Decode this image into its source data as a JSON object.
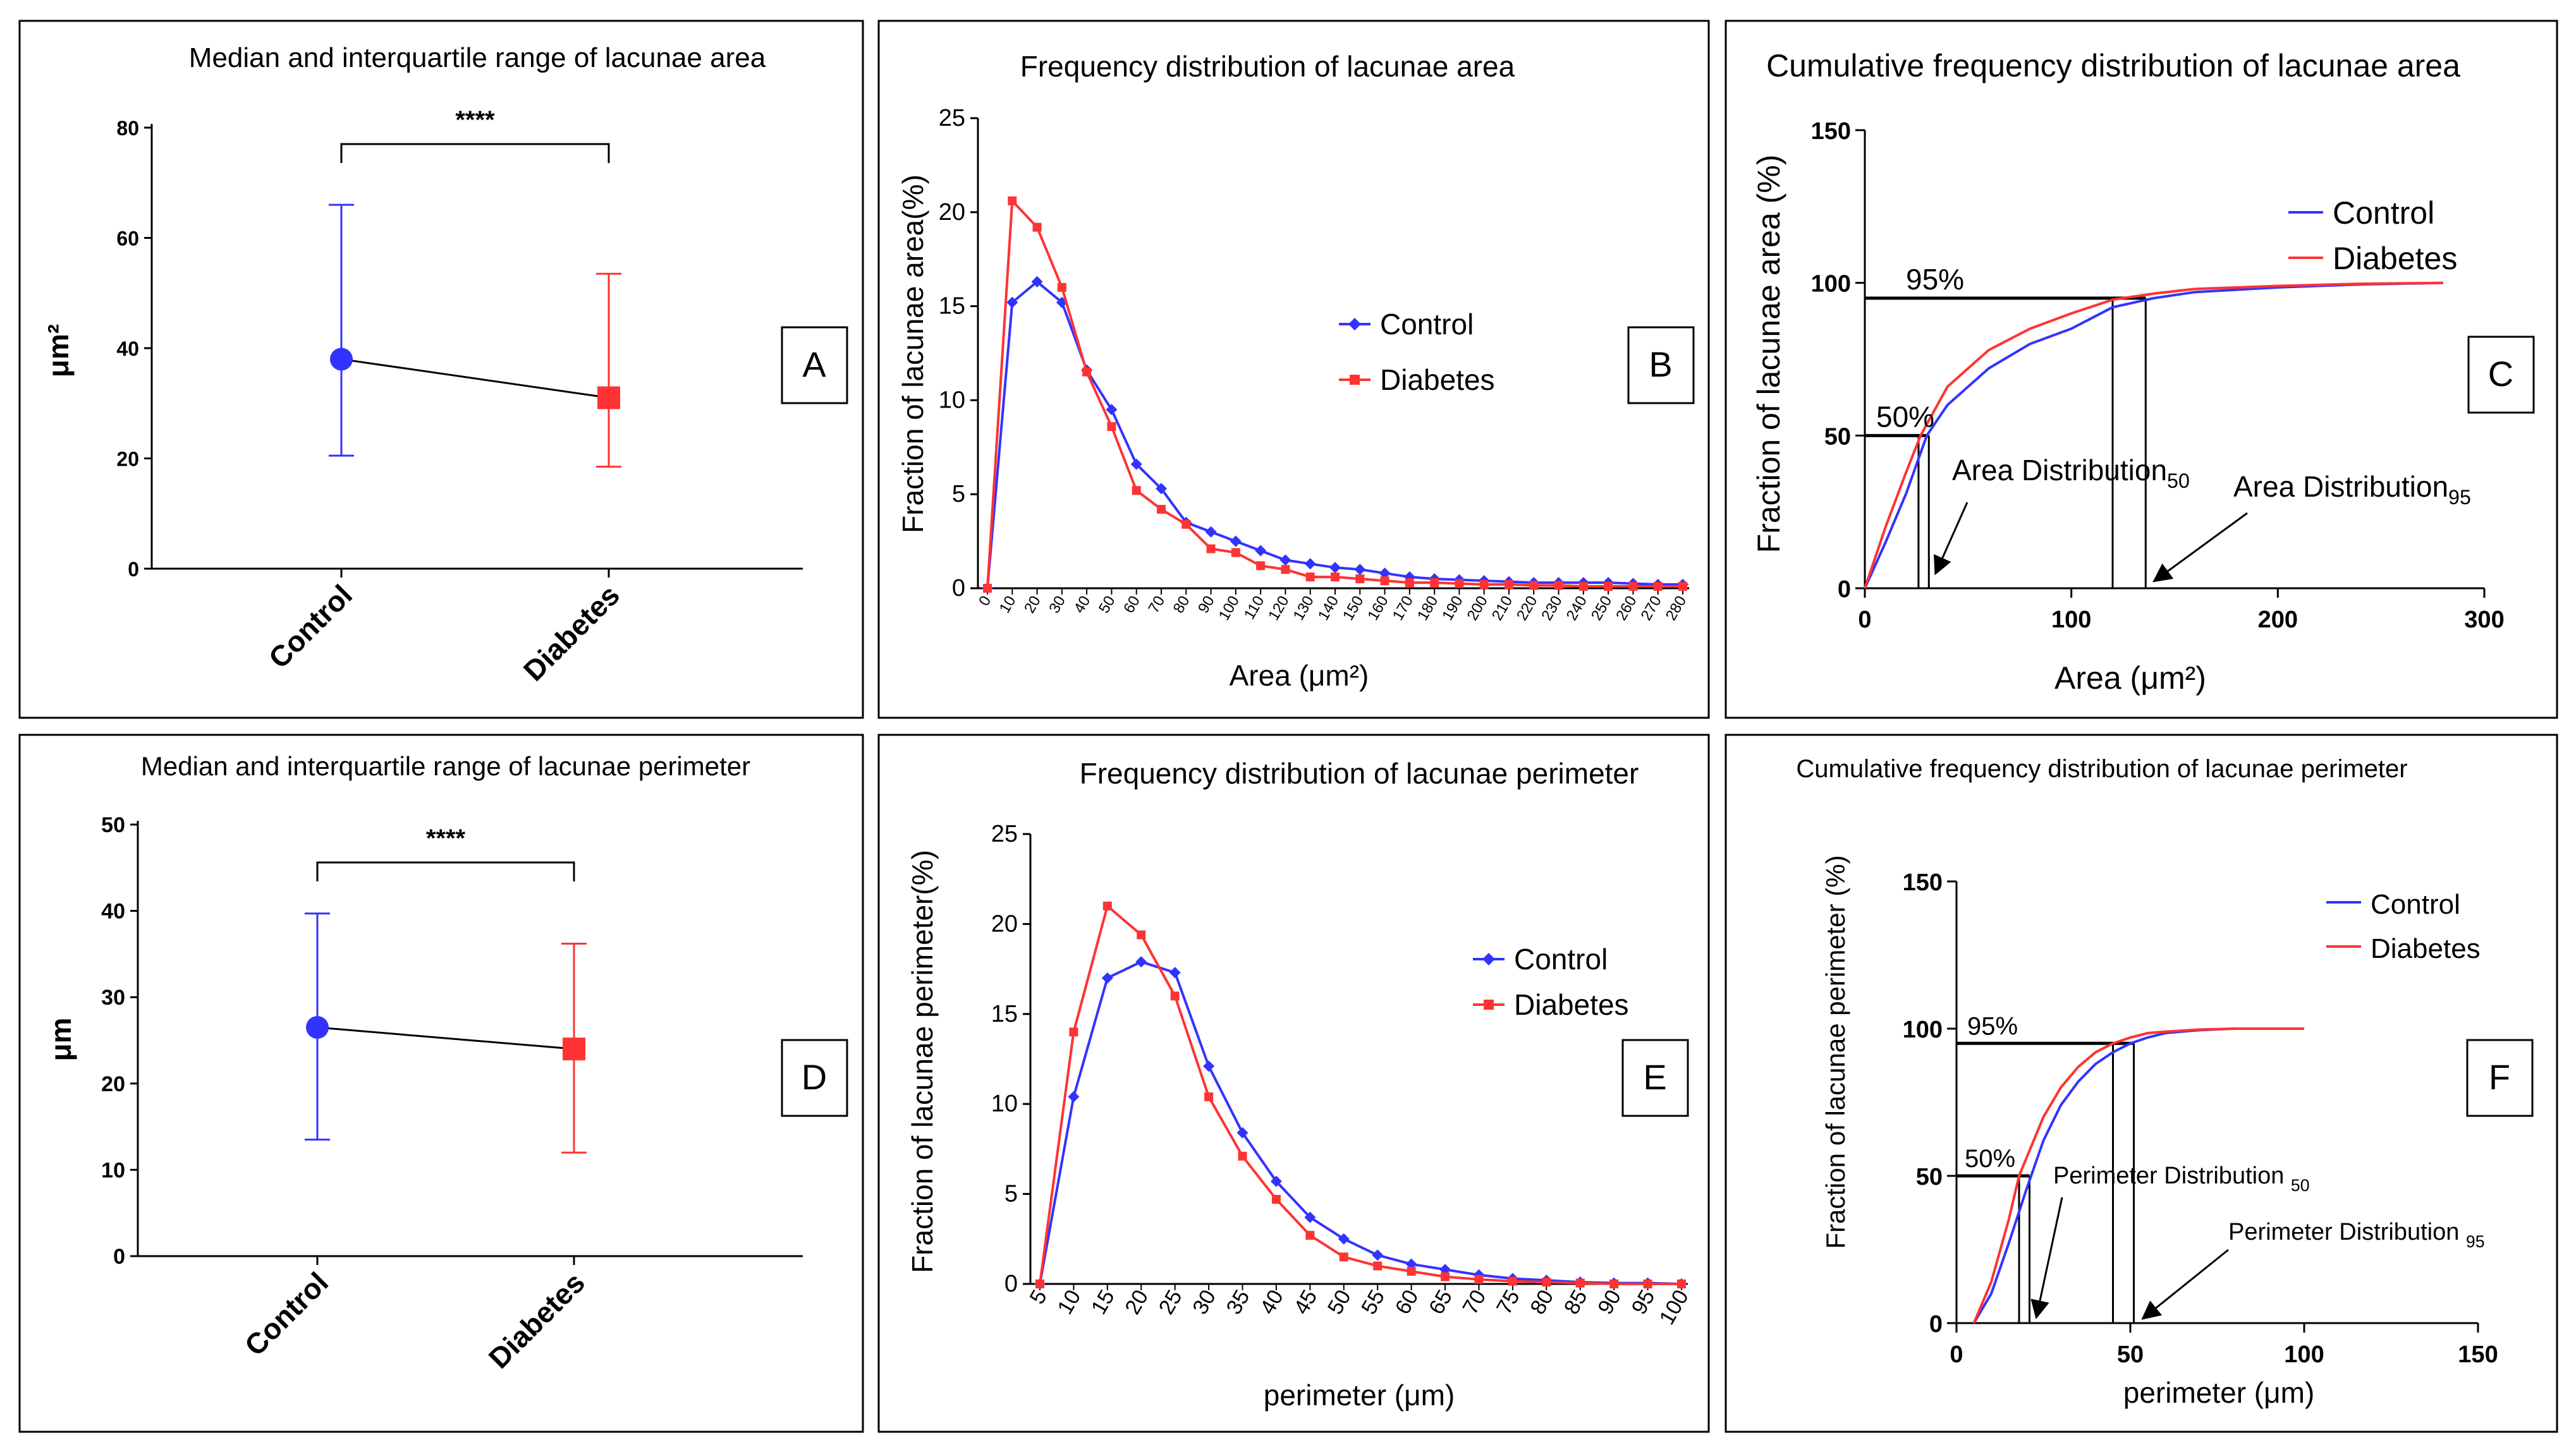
{
  "colors": {
    "control": "#3333ff",
    "diabetes": "#ff3333",
    "axis": "#000000",
    "connector": "#000000"
  },
  "chart_data": [
    {
      "id": "A",
      "type": "median-iqr",
      "title": "Median and interquartile range of  lacunae area",
      "panel_label": "A",
      "ylabel": "μm²",
      "ylim": [
        0,
        80
      ],
      "yticks": [
        0,
        20,
        40,
        60,
        80
      ],
      "categories": [
        "Control",
        "Diabetes"
      ],
      "series": [
        {
          "name": "Control",
          "median": 38,
          "q1": 20.5,
          "q3": 66
        },
        {
          "name": "Diabetes",
          "median": 31,
          "q1": 18.5,
          "q3": 53.5
        }
      ],
      "significance": "****"
    },
    {
      "id": "B",
      "type": "line",
      "title": "Frequency distribution of lacunae area",
      "panel_label": "B",
      "xlabel": "Area (μm²)",
      "ylabel": "Fraction of lacunae area(%)",
      "ylim": [
        0,
        25
      ],
      "yticks": [
        0,
        5,
        10,
        15,
        20,
        25
      ],
      "x": [
        0,
        10,
        20,
        30,
        40,
        50,
        60,
        70,
        80,
        90,
        100,
        110,
        120,
        130,
        140,
        150,
        160,
        170,
        180,
        190,
        200,
        210,
        220,
        230,
        240,
        250,
        260,
        270,
        280
      ],
      "series": [
        {
          "name": "Control",
          "values": [
            0,
            15.2,
            16.3,
            15.2,
            11.6,
            9.5,
            6.6,
            5.3,
            3.5,
            3.0,
            2.5,
            2.0,
            1.5,
            1.3,
            1.1,
            1.0,
            0.8,
            0.6,
            0.5,
            0.45,
            0.4,
            0.35,
            0.3,
            0.3,
            0.3,
            0.3,
            0.25,
            0.2,
            0.2
          ]
        },
        {
          "name": "Diabetes",
          "values": [
            0,
            20.6,
            19.2,
            16.0,
            11.5,
            8.6,
            5.2,
            4.2,
            3.4,
            2.1,
            1.9,
            1.2,
            1.0,
            0.6,
            0.6,
            0.5,
            0.4,
            0.3,
            0.3,
            0.25,
            0.2,
            0.2,
            0.15,
            0.15,
            0.1,
            0.1,
            0.1,
            0.1,
            0.1
          ]
        }
      ],
      "legend": [
        "Control",
        "Diabetes"
      ]
    },
    {
      "id": "C",
      "type": "cumulative",
      "title": "Cumulative frequency distribution of lacunae area",
      "panel_label": "C",
      "xlabel": "Area (μm²)",
      "ylabel": "Fraction of lacunae area (%)",
      "xlim": [
        0,
        300
      ],
      "xticks": [
        0,
        100,
        200,
        300
      ],
      "ylim": [
        0,
        150
      ],
      "yticks": [
        0,
        50,
        100,
        150
      ],
      "series": [
        {
          "name": "Control",
          "points": [
            [
              0,
              0
            ],
            [
              10,
              15
            ],
            [
              20,
              31
            ],
            [
              30,
              50
            ],
            [
              40,
              60
            ],
            [
              60,
              72
            ],
            [
              80,
              80
            ],
            [
              100,
              85
            ],
            [
              120,
              92
            ],
            [
              140,
              95
            ],
            [
              160,
              97
            ],
            [
              200,
              98.5
            ],
            [
              240,
              99.5
            ],
            [
              280,
              100
            ]
          ]
        },
        {
          "name": "Diabetes",
          "points": [
            [
              0,
              0
            ],
            [
              10,
              20
            ],
            [
              20,
              38
            ],
            [
              27,
              50
            ],
            [
              40,
              66
            ],
            [
              60,
              78
            ],
            [
              80,
              85
            ],
            [
              100,
              90
            ],
            [
              120,
              94.5
            ],
            [
              140,
              96.5
            ],
            [
              160,
              98
            ],
            [
              200,
              99
            ],
            [
              240,
              99.7
            ],
            [
              280,
              100
            ]
          ]
        }
      ],
      "legend": [
        "Control",
        "Diabetes"
      ],
      "refs": {
        "p50": 50,
        "p95": 95,
        "x50": [
          26,
          31
        ],
        "x95": [
          120,
          136
        ]
      },
      "labels": {
        "pct95": "95%",
        "pct50": "50%",
        "dist50": "Area Distribution",
        "dist50_sub": "50",
        "dist95": "Area Distribution",
        "dist95_sub": "95"
      }
    },
    {
      "id": "D",
      "type": "median-iqr",
      "title": "Median and interquartile range of  lacunae perimeter",
      "panel_label": "D",
      "ylabel": "μm",
      "ylim": [
        0,
        50
      ],
      "yticks": [
        0,
        10,
        20,
        30,
        40,
        50
      ],
      "categories": [
        "Control",
        "Diabetes"
      ],
      "series": [
        {
          "name": "Control",
          "median": 26.5,
          "q1": 13.5,
          "q3": 39.7
        },
        {
          "name": "Diabetes",
          "median": 24,
          "q1": 12,
          "q3": 36.2
        }
      ],
      "significance": "****"
    },
    {
      "id": "E",
      "type": "line",
      "title": "Frequency distribution of lacunae perimeter",
      "panel_label": "E",
      "xlabel": "perimeter (μm)",
      "ylabel": "Fraction of lacunae perimeter(%)",
      "ylim": [
        0,
        25
      ],
      "yticks": [
        0,
        5,
        10,
        15,
        20,
        25
      ],
      "x": [
        5,
        10,
        15,
        20,
        25,
        30,
        35,
        40,
        45,
        50,
        55,
        60,
        65,
        70,
        75,
        80,
        85,
        90,
        95,
        100
      ],
      "series": [
        {
          "name": "Control",
          "values": [
            0,
            10.4,
            17.0,
            17.9,
            17.3,
            12.1,
            8.4,
            5.7,
            3.7,
            2.5,
            1.6,
            1.1,
            0.8,
            0.5,
            0.3,
            0.2,
            0.1,
            0.05,
            0.05,
            0
          ]
        },
        {
          "name": "Diabetes",
          "values": [
            0,
            14.0,
            21.0,
            19.4,
            16.0,
            10.4,
            7.1,
            4.7,
            2.7,
            1.5,
            1.0,
            0.7,
            0.4,
            0.25,
            0.15,
            0.1,
            0.05,
            0,
            0,
            0
          ]
        }
      ],
      "legend": [
        "Control",
        "Diabetes"
      ]
    },
    {
      "id": "F",
      "type": "cumulative",
      "title": "Cumulative frequency distribution of lacunae perimeter",
      "panel_label": "F",
      "xlabel": "perimeter (μm)",
      "ylabel": "Fraction of lacunae perimeter (%)",
      "xlim": [
        0,
        150
      ],
      "xticks": [
        0,
        50,
        100,
        150
      ],
      "ylim": [
        0,
        150
      ],
      "yticks": [
        0,
        50,
        100,
        150
      ],
      "series": [
        {
          "name": "Control",
          "points": [
            [
              5,
              0
            ],
            [
              10,
              10
            ],
            [
              15,
              27
            ],
            [
              20,
              45
            ],
            [
              25,
              62
            ],
            [
              30,
              74
            ],
            [
              35,
              82
            ],
            [
              40,
              88
            ],
            [
              45,
              92
            ],
            [
              50,
              95
            ],
            [
              55,
              97
            ],
            [
              60,
              98.5
            ],
            [
              70,
              99.5
            ],
            [
              80,
              100
            ],
            [
              100,
              100
            ]
          ]
        },
        {
          "name": "Diabetes",
          "points": [
            [
              5,
              0
            ],
            [
              10,
              14
            ],
            [
              15,
              35
            ],
            [
              18,
              50
            ],
            [
              25,
              70
            ],
            [
              30,
              80
            ],
            [
              35,
              87
            ],
            [
              40,
              92
            ],
            [
              45,
              95
            ],
            [
              50,
              97
            ],
            [
              55,
              98.5
            ],
            [
              60,
              99
            ],
            [
              70,
              99.7
            ],
            [
              80,
              100
            ],
            [
              100,
              100
            ]
          ]
        }
      ],
      "legend": [
        "Control",
        "Diabetes"
      ],
      "refs": {
        "p50": 50,
        "p95": 95,
        "x50": [
          18,
          21
        ],
        "x95": [
          45,
          51
        ]
      },
      "labels": {
        "pct95": "95%",
        "pct50": "50%",
        "dist50": "Perimeter Distribution ",
        "dist50_sub": "50",
        "dist95": "Perimeter Distribution ",
        "dist95_sub": "95"
      }
    }
  ]
}
